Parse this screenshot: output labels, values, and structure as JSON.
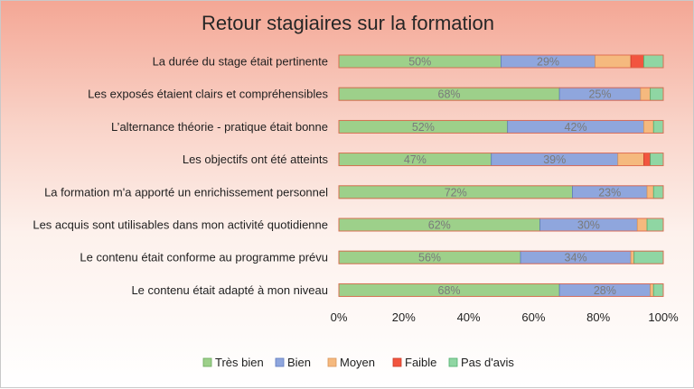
{
  "chart_data": {
    "type": "bar",
    "orientation": "horizontal",
    "stacked": "percent",
    "title": "Retour stagiaires sur la formation",
    "categories": [
      "La durée du stage était pertinente",
      "Les exposés étaient clairs et compréhensibles",
      "L’alternance théorie - pratique était bonne",
      "Les objectifs ont été atteints",
      "La formation m'a apporté un enrichissement personnel",
      "Les acquis sont utilisables dans mon activité quotidienne",
      "Le contenu était conforme au programme prévu",
      "Le contenu était adapté à mon niveau"
    ],
    "series": [
      {
        "name": "Très bien",
        "color": "#9dd08a",
        "stroke": "#6aa85a",
        "values": [
          50,
          68,
          52,
          47,
          72,
          62,
          56,
          68
        ]
      },
      {
        "name": "Bien",
        "color": "#8fa6dd",
        "stroke": "#5f7bbf",
        "values": [
          29,
          25,
          42,
          39,
          23,
          30,
          34,
          28
        ]
      },
      {
        "name": "Moyen",
        "color": "#f5b97e",
        "stroke": "#d9955a",
        "values": [
          11,
          3,
          3,
          8,
          2,
          3,
          1,
          1
        ]
      },
      {
        "name": "Faible",
        "color": "#f2553f",
        "stroke": "#c93c2a",
        "values": [
          4,
          0,
          0,
          2,
          0,
          0,
          0,
          0
        ]
      },
      {
        "name": "Pas d'avis",
        "color": "#8fd6a3",
        "stroke": "#4fae6d",
        "values": [
          6,
          4,
          3,
          4,
          3,
          5,
          9,
          3
        ]
      }
    ],
    "data_labels": [
      [
        "50%",
        "29%"
      ],
      [
        "68%",
        "25%"
      ],
      [
        "52%",
        "42%"
      ],
      [
        "47%",
        "39%"
      ],
      [
        "72%",
        "23%"
      ],
      [
        "62%",
        "30%"
      ],
      [
        "56%",
        "34%"
      ],
      [
        "68%",
        "28%"
      ]
    ],
    "x_ticks": [
      "0%",
      "20%",
      "40%",
      "60%",
      "80%",
      "100%"
    ],
    "xlim": [
      0,
      100
    ],
    "grid": false,
    "legend_position": "bottom",
    "frame_color": "#e06a50"
  }
}
